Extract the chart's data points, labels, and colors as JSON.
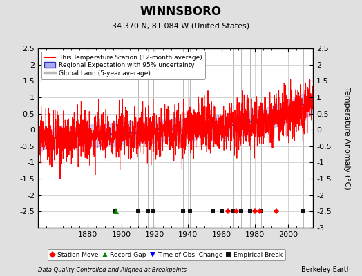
{
  "title": "WINNSBORO",
  "subtitle": "34.370 N, 81.084 W (United States)",
  "ylabel": "Temperature Anomaly (°C)",
  "footer_left": "Data Quality Controlled and Aligned at Breakpoints",
  "footer_right": "Berkeley Earth",
  "ylim": [
    -3.0,
    2.5
  ],
  "xlim": [
    1850,
    2015
  ],
  "yticks_left": [
    -2.5,
    -2,
    -1.5,
    -1,
    -0.5,
    0,
    0.5,
    1,
    1.5,
    2,
    2.5
  ],
  "yticks_right": [
    -3,
    -2.5,
    -2,
    -1.5,
    -1,
    -0.5,
    0,
    0.5,
    1,
    1.5,
    2,
    2.5
  ],
  "xticks": [
    1880,
    1900,
    1920,
    1940,
    1960,
    1980,
    2000
  ],
  "legend_entries": [
    {
      "label": "This Temperature Station (12-month average)",
      "color": "#ff0000",
      "lw": 1.5
    },
    {
      "label": "Regional Expectation with 95% uncertainty",
      "color": "#6666ff",
      "lw": 1.5
    },
    {
      "label": "Global Land (5-year average)",
      "color": "#b0b0b0",
      "lw": 2.5
    }
  ],
  "marker_entries": [
    {
      "label": "Station Move",
      "color": "#ff0000",
      "marker": "D"
    },
    {
      "label": "Record Gap",
      "color": "#008800",
      "marker": "^"
    },
    {
      "label": "Time of Obs. Change",
      "color": "#0000ff",
      "marker": "v"
    },
    {
      "label": "Empirical Break",
      "color": "#000000",
      "marker": "s"
    }
  ],
  "station_moves": [
    1964,
    1969,
    1980,
    1983,
    1993
  ],
  "record_gaps": [
    1897
  ],
  "time_obs_changes": [],
  "empirical_breaks": [
    1896,
    1910,
    1916,
    1919,
    1937,
    1941,
    1955,
    1960,
    1967,
    1972,
    1977,
    1984,
    2009
  ],
  "bg_color": "#e0e0e0",
  "plot_bg_color": "#ffffff",
  "seed": 42
}
